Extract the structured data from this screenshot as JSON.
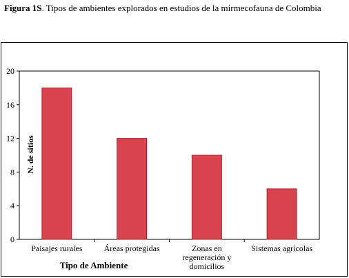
{
  "figure": {
    "label": "Figura 1S",
    "caption": ". Tipos de ambientes explorados en estudios de la mirmecofauna de Colombia"
  },
  "chart_data": {
    "type": "bar",
    "title": "",
    "xlabel": "Tipo de Ambiente",
    "ylabel": "N. de sitios",
    "ylim": [
      0,
      20
    ],
    "yticks": [
      0,
      4,
      8,
      12,
      16,
      20
    ],
    "categories": [
      [
        "Paisajes rurales"
      ],
      [
        "Áreas protegidas"
      ],
      [
        "Zonas en",
        "regeneración y",
        "domicilios"
      ],
      [
        "Sistemas agrícolas"
      ]
    ],
    "values": [
      18,
      12,
      10,
      6
    ],
    "grid": false,
    "legend": "none",
    "bar_color": "#d9434e",
    "bar_edge_color": "#9e2a33"
  }
}
